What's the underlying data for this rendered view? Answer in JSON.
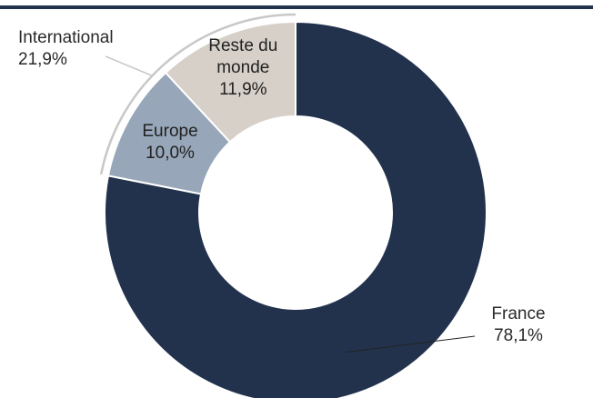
{
  "chart_data": {
    "type": "pie",
    "donut": true,
    "categories": [
      "France",
      "Europe",
      "Reste du monde"
    ],
    "values": [
      78.1,
      10.0,
      11.9
    ],
    "value_labels": [
      "78,1%",
      "10,0%",
      "11,9%"
    ],
    "colors": [
      "#22324d",
      "#97a7b9",
      "#d6d0c8"
    ],
    "annotation": {
      "text": "International",
      "value": 21.9,
      "value_label": "21,9%"
    }
  }
}
